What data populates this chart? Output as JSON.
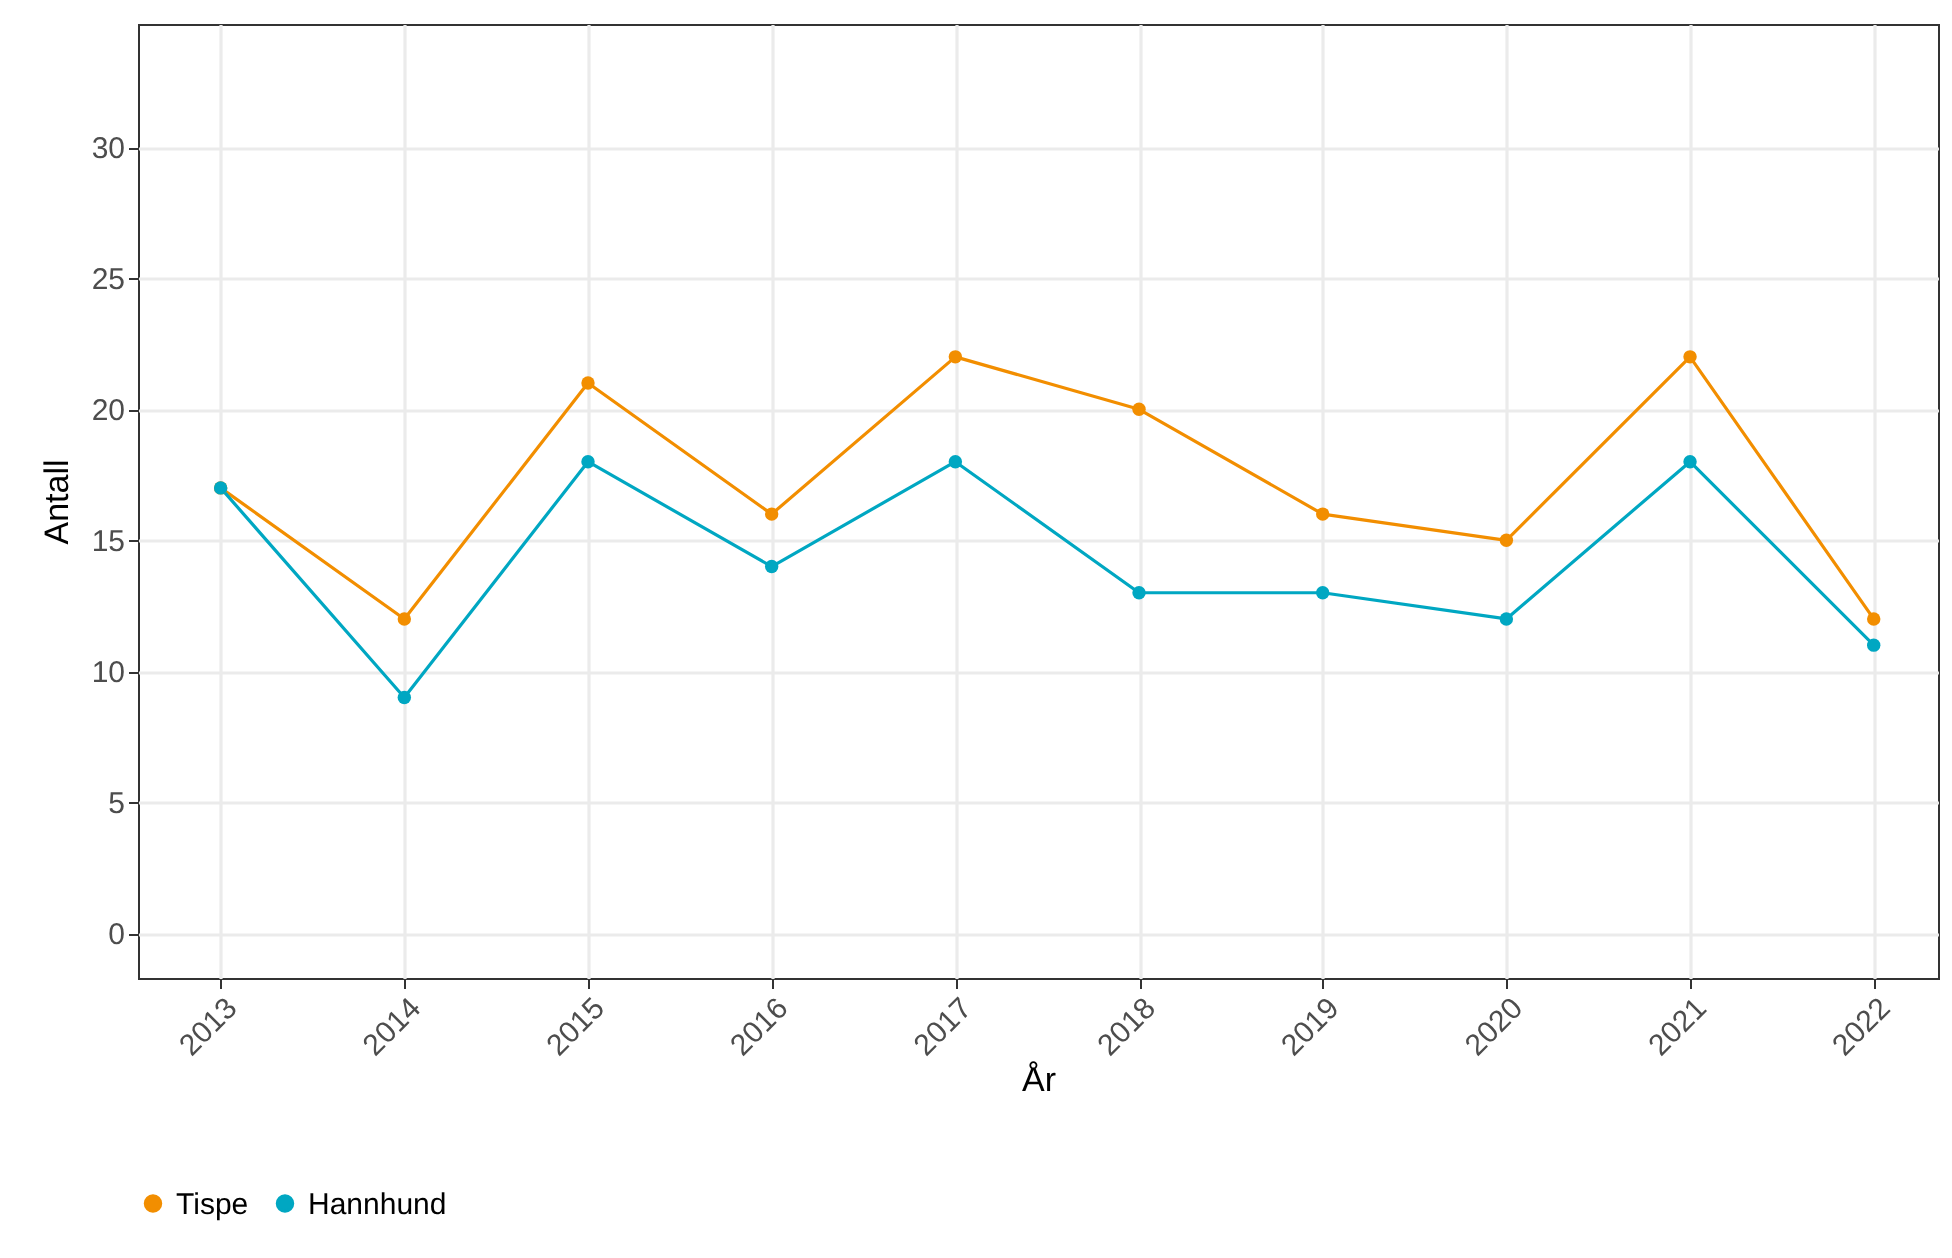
{
  "chart_data": {
    "type": "line",
    "xlabel": "År",
    "ylabel": "Antall",
    "x": [
      2013,
      2014,
      2015,
      2016,
      2017,
      2018,
      2019,
      2020,
      2021,
      2022
    ],
    "series": [
      {
        "name": "Tispe",
        "color": "#f28e00",
        "values": [
          17,
          12,
          21,
          16,
          22,
          20,
          16,
          15,
          22,
          12
        ]
      },
      {
        "name": "Hannhund",
        "color": "#00a7c2",
        "values": [
          17,
          9,
          18,
          14,
          18,
          13,
          13,
          12,
          18,
          11
        ]
      }
    ],
    "xlim": [
      2012.55,
      2022.35
    ],
    "xticks": [
      2013,
      2014,
      2015,
      2016,
      2017,
      2018,
      2019,
      2020,
      2021,
      2022
    ],
    "ylim": [
      -1.7,
      34.7
    ],
    "yticks": [
      0,
      5,
      10,
      15,
      20,
      25,
      30
    ],
    "grid": true,
    "legend": "bottom",
    "marker": "circle",
    "line_style": "solid"
  }
}
